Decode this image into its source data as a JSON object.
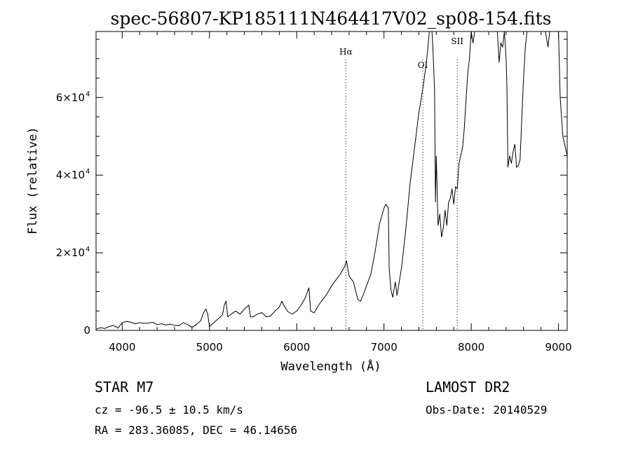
{
  "chart_data": {
    "type": "line",
    "title": "spec-56807-KP185111N464417V02_sp08-154.fits",
    "xlabel": "Wavelength (Å)",
    "ylabel": "Flux (relative)",
    "xlim": [
      3700,
      9100
    ],
    "ylim": [
      0,
      77000
    ],
    "xticks": [
      {
        "value": 4000,
        "label": "4000"
      },
      {
        "value": 5000,
        "label": "5000"
      },
      {
        "value": 6000,
        "label": "6000"
      },
      {
        "value": 7000,
        "label": "7000"
      },
      {
        "value": 8000,
        "label": "8000"
      },
      {
        "value": 9000,
        "label": "9000"
      }
    ],
    "yticks": [
      {
        "value": 0,
        "label": "0",
        "exp": ""
      },
      {
        "value": 20000,
        "label": "2×10",
        "exp": "4"
      },
      {
        "value": 40000,
        "label": "4×10",
        "exp": "4"
      },
      {
        "value": 60000,
        "label": "6×10",
        "exp": "4"
      }
    ],
    "lines": [
      {
        "name": "Hα",
        "wavelength": 6563
      },
      {
        "name": "OI",
        "wavelength": 7445
      },
      {
        "name": "SII",
        "wavelength": 7840
      }
    ],
    "series": [
      {
        "x": [
          3700,
          3750,
          3800,
          3850,
          3900,
          3950,
          4000,
          4050,
          4100,
          4150,
          4200,
          4250,
          4300,
          4350,
          4400,
          4450,
          4500,
          4550,
          4600,
          4650,
          4700,
          4750,
          4800,
          4850,
          4900,
          4930,
          4960,
          4980,
          5000,
          5050,
          5100,
          5150,
          5170,
          5190,
          5210,
          5250,
          5300,
          5350,
          5400,
          5450,
          5470,
          5500,
          5550,
          5600,
          5650,
          5700,
          5750,
          5800,
          5830,
          5850,
          5900,
          5950,
          6000,
          6050,
          6100,
          6140,
          6160,
          6200,
          6250,
          6300,
          6350,
          6400,
          6450,
          6500,
          6550,
          6570,
          6600,
          6650,
          6700,
          6730,
          6760,
          6800,
          6850,
          6900,
          6950,
          7000,
          7020,
          7050,
          7060,
          7080,
          7100,
          7130,
          7150,
          7200,
          7250,
          7300,
          7350,
          7400,
          7450,
          7480,
          7500,
          7520,
          7550,
          7560,
          7580,
          7590,
          7600,
          7620,
          7640,
          7660,
          7680,
          7700,
          7720,
          7740,
          7760,
          7780,
          7800,
          7820,
          7840,
          7860,
          7880,
          7900,
          7920,
          7940,
          7960,
          7980,
          8000,
          8020,
          8040,
          8060,
          8080,
          8100,
          8150,
          8200,
          8250,
          8300,
          8320,
          8340,
          8360,
          8380,
          8400,
          8410,
          8420,
          8440,
          8460,
          8480,
          8500,
          8520,
          8540,
          8560,
          8580,
          8600,
          8620,
          8640,
          8660,
          8680,
          8700,
          8750,
          8800,
          8850,
          8880,
          8900,
          8950,
          9000,
          9020,
          9050,
          9100
        ],
        "y": [
          300,
          700,
          500,
          1000,
          1300,
          600,
          2000,
          2300,
          2100,
          1700,
          2000,
          1800,
          1900,
          2100,
          1500,
          1700,
          1400,
          1600,
          1300,
          1200,
          2000,
          1500,
          800,
          1500,
          2500,
          4500,
          5500,
          4200,
          1000,
          2000,
          3000,
          4000,
          6500,
          7500,
          3500,
          4200,
          5000,
          4200,
          5500,
          6500,
          3500,
          3500,
          4200,
          4600,
          3500,
          3700,
          5000,
          6000,
          7500,
          6500,
          4800,
          4200,
          5000,
          6500,
          8500,
          11000,
          5000,
          4500,
          6500,
          8000,
          9500,
          11500,
          13000,
          14500,
          16500,
          18000,
          14000,
          12500,
          8000,
          7500,
          9000,
          11500,
          14500,
          20500,
          27500,
          31500,
          32500,
          31500,
          16000,
          10500,
          8500,
          12500,
          9000,
          16000,
          26000,
          38000,
          47000,
          56000,
          63000,
          68000,
          72000,
          77000,
          77000,
          73000,
          62000,
          33000,
          45000,
          27000,
          30000,
          24000,
          26500,
          31000,
          27000,
          33000,
          34000,
          36500,
          32500,
          37000,
          36500,
          43000,
          45000,
          47000,
          52000,
          59000,
          66000,
          70000,
          77000,
          74000,
          77000,
          77000,
          77000,
          77000,
          77000,
          77000,
          77000,
          77000,
          69000,
          74000,
          73000,
          77000,
          70000,
          62000,
          42000,
          45000,
          43000,
          46000,
          48000,
          42000,
          42500,
          44000,
          55000,
          65000,
          73000,
          77000,
          77000,
          77000,
          77000,
          77000,
          77000,
          77000,
          73000,
          77000,
          77000,
          77000,
          60000,
          50000,
          45000
        ]
      }
    ]
  },
  "footer": {
    "object": "STAR    M7",
    "survey": "LAMOST DR2",
    "cz": "cz = -96.5 ± 10.5 km/s",
    "obs_date": "Obs-Date: 20140529",
    "coords": "RA = 283.36085, DEC =  46.14656"
  }
}
